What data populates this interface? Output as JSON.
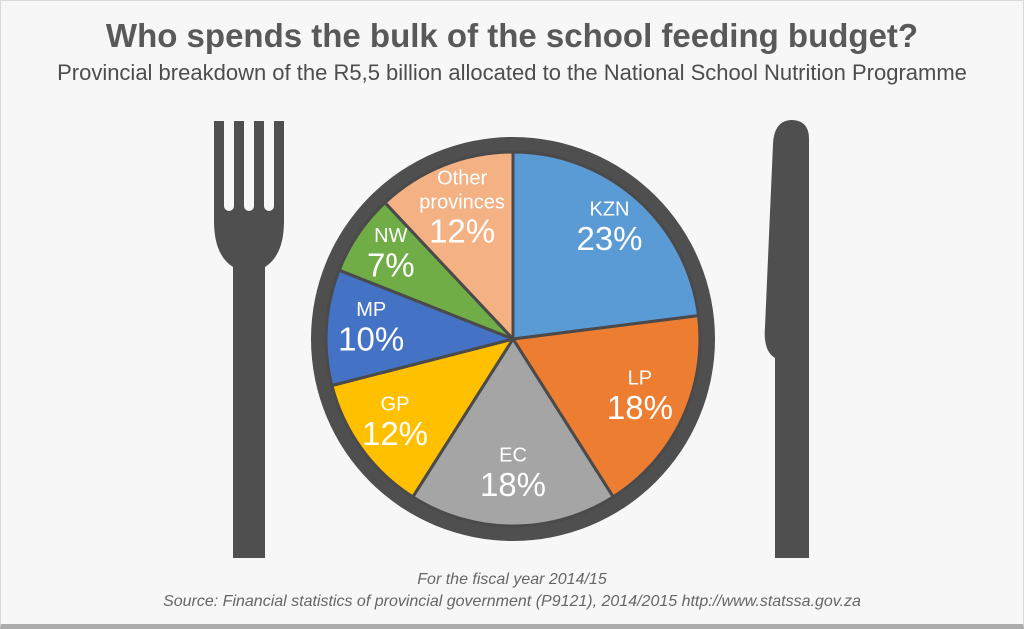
{
  "chart_data": {
    "type": "pie",
    "title": "Who spends the bulk of the school feeding budget?",
    "subtitle": "Provincial breakdown of the R5,5 billion allocated to the National School Nutrition Programme",
    "footnote": "For the fiscal year 2014/15",
    "source": "Source: Financial statistics of provincial government (P9121), 2014/2015  http://www.statssa.gov.za",
    "unit": "%",
    "total": 100,
    "start_angle": "12 o'clock",
    "direction": "clockwise",
    "labels_position": "inside",
    "legend": "none",
    "slices": [
      {
        "label": "KZN",
        "value": 23,
        "color": "#5B9BD5",
        "label_r": 0.78
      },
      {
        "label": "LP",
        "value": 18,
        "color": "#ED7D31",
        "label_r": 0.75
      },
      {
        "label": "EC",
        "value": 18,
        "color": "#A5A5A5",
        "label_r": 0.73
      },
      {
        "label": "GP",
        "value": 12,
        "color": "#FFC000",
        "label_r": 0.78
      },
      {
        "label": "MP",
        "value": 10,
        "color": "#4472C4",
        "label_r": 0.76
      },
      {
        "label": "NW",
        "value": 7,
        "color": "#70AD47",
        "label_r": 0.79
      },
      {
        "label": "Other provinces",
        "value": 12,
        "color": "#F4B183",
        "label_r": 0.74,
        "label_lines": [
          "Other",
          "provinces"
        ]
      }
    ]
  },
  "decor": {
    "icons": [
      "fork-icon",
      "knife-icon",
      "plate-icon"
    ],
    "plate_color": "#4F4F4F",
    "cutlery_color": "#4F4F4F",
    "slice_border_color": "#4A4A4A",
    "label_text_color": "#FFFFFF",
    "background_color": "#F7F7F7"
  }
}
